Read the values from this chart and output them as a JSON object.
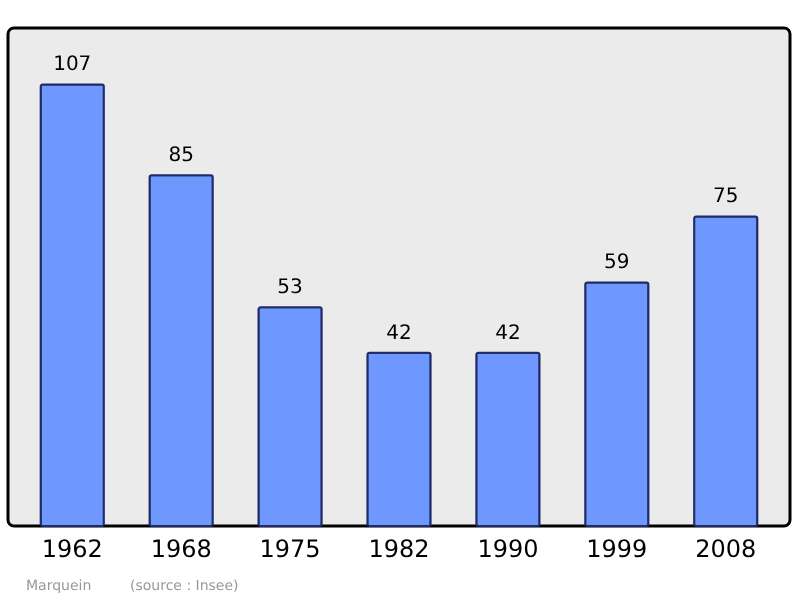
{
  "chart_data": {
    "type": "bar",
    "categories": [
      "1962",
      "1968",
      "1975",
      "1982",
      "1990",
      "1999",
      "2008"
    ],
    "values": [
      107,
      85,
      53,
      42,
      42,
      59,
      75
    ],
    "color": "#6f98ff",
    "data_labels": true,
    "annotations": [
      "Marquein",
      "(source : Insee)"
    ]
  }
}
